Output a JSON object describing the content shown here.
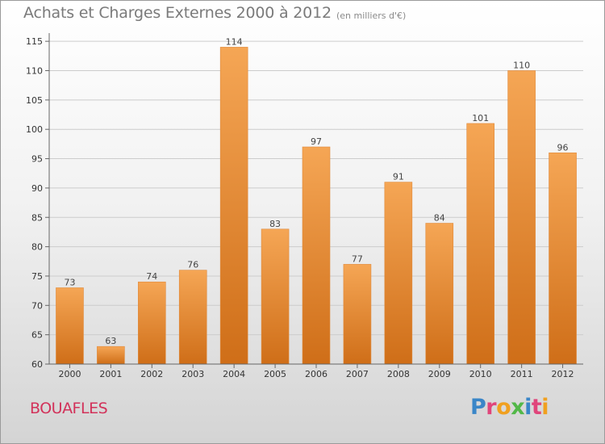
{
  "title": "Achats et Charges Externes 2000 à 2012",
  "unit_note": "(en milliers d'€)",
  "commune": "BOUAFLES",
  "logo": {
    "text": "Proxiti",
    "letters": [
      {
        "ch": "P",
        "color": "#3a86c8"
      },
      {
        "ch": "r",
        "color": "#e0457b"
      },
      {
        "ch": "o",
        "color": "#f0a020"
      },
      {
        "ch": "x",
        "color": "#52b848"
      },
      {
        "ch": "i",
        "color": "#3a86c8"
      },
      {
        "ch": "t",
        "color": "#e0457b"
      },
      {
        "ch": "i",
        "color": "#f0a020"
      }
    ]
  },
  "colors": {
    "bar_top": "#f5a655",
    "bar_bottom": "#cf6e18",
    "grid": "#cccccc",
    "axis": "#666666"
  },
  "chart_data": {
    "type": "bar",
    "title": "Achats et Charges Externes 2000 à 2012",
    "subtitle": "(en milliers d'€)",
    "xlabel": "",
    "ylabel": "",
    "categories": [
      "2000",
      "2001",
      "2002",
      "2003",
      "2004",
      "2005",
      "2006",
      "2007",
      "2008",
      "2009",
      "2010",
      "2011",
      "2012"
    ],
    "values": [
      73,
      63,
      74,
      76,
      114,
      83,
      97,
      77,
      91,
      84,
      101,
      110,
      96
    ],
    "ylim": [
      60,
      117
    ],
    "yticks": [
      60,
      65,
      70,
      75,
      80,
      85,
      90,
      95,
      100,
      105,
      110,
      115
    ],
    "grid": true,
    "legend": "none"
  }
}
